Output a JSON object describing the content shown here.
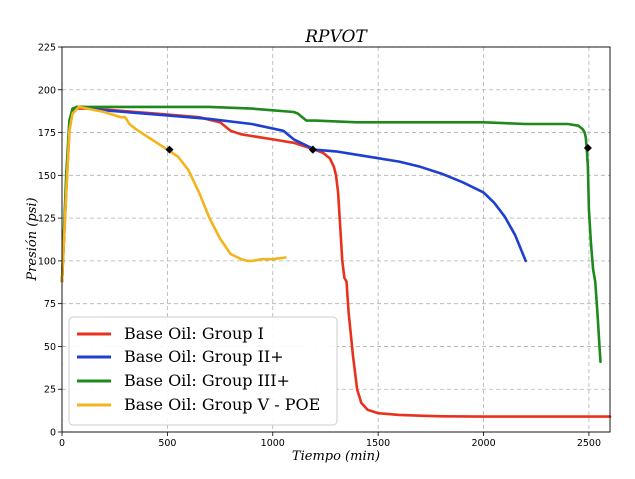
{
  "chart_data": {
    "type": "line",
    "title": "RPVOT",
    "xlabel": "Tiempo (min)",
    "ylabel": "Presión (psi)",
    "xlim": [
      0,
      2600
    ],
    "ylim": [
      0,
      225
    ],
    "xticks": [
      "0",
      "500",
      "1000",
      "1500",
      "2000",
      "2500"
    ],
    "yticks": [
      "0",
      "25",
      "50",
      "75",
      "100",
      "125",
      "150",
      "175",
      "200",
      "225"
    ],
    "xtick_values": [
      0,
      500,
      1000,
      1500,
      2000,
      2500
    ],
    "ytick_values": [
      0,
      25,
      50,
      75,
      100,
      125,
      150,
      175,
      200,
      225
    ],
    "grid": true,
    "legend_position": "lower-left",
    "series": [
      {
        "name": "Base Oil: Group I",
        "color": "#e8321e",
        "x": [
          0,
          20,
          35,
          50,
          70,
          100,
          150,
          250,
          350,
          450,
          550,
          650,
          750,
          800,
          850,
          900,
          950,
          1000,
          1050,
          1100,
          1150,
          1200,
          1240,
          1270,
          1290,
          1300,
          1310,
          1320,
          1330,
          1340,
          1350,
          1360,
          1380,
          1400,
          1420,
          1450,
          1500,
          1600,
          1700,
          1800,
          2000,
          2200,
          2400,
          2600
        ],
        "y": [
          88,
          140,
          176,
          187,
          189,
          189,
          189,
          188,
          187,
          186,
          185,
          184,
          181,
          176,
          174,
          173,
          172,
          171,
          170,
          169,
          167,
          165,
          163,
          160,
          155,
          150,
          140,
          120,
          100,
          90,
          88,
          70,
          45,
          25,
          17,
          13,
          11,
          10,
          9.5,
          9.2,
          9,
          9,
          9,
          9
        ],
        "marker": {
          "x": 1190,
          "y": 165
        }
      },
      {
        "name": "Base Oil: Group II+",
        "color": "#1f3fd0",
        "x": [
          0,
          20,
          35,
          50,
          70,
          100,
          200,
          300,
          500,
          700,
          900,
          1050,
          1100,
          1150,
          1200,
          1300,
          1400,
          1500,
          1600,
          1700,
          1800,
          1900,
          2000,
          2050,
          2100,
          2150,
          2200
        ],
        "y": [
          88,
          145,
          180,
          188,
          190,
          190,
          188,
          187,
          185,
          183,
          180,
          176,
          171,
          168,
          165,
          164,
          162,
          160,
          158,
          155,
          151,
          146,
          140,
          134,
          126,
          115,
          100
        ],
        "marker": {
          "x": 1190,
          "y": 165
        }
      },
      {
        "name": "Base Oil: Group III+",
        "color": "#1e8a1e",
        "x": [
          0,
          20,
          35,
          50,
          70,
          100,
          200,
          400,
          550,
          700,
          900,
          1000,
          1100,
          1120,
          1140,
          1160,
          1200,
          1400,
          1600,
          1800,
          2000,
          2200,
          2400,
          2450,
          2470,
          2480,
          2485,
          2490,
          2495,
          2500,
          2510,
          2520,
          2530,
          2540,
          2550,
          2555
        ],
        "y": [
          88,
          150,
          182,
          189,
          190,
          190,
          190,
          190,
          190,
          190,
          189,
          188,
          187,
          186,
          184,
          182,
          182,
          181,
          181,
          181,
          181,
          180,
          180,
          179,
          177,
          175,
          172,
          165,
          155,
          130,
          110,
          95,
          88,
          70,
          50,
          41
        ],
        "marker": {
          "x": 2495,
          "y": 166
        }
      },
      {
        "name": "Base Oil: Group V - POE",
        "color": "#f4b41c",
        "x": [
          0,
          20,
          35,
          50,
          80,
          120,
          200,
          280,
          300,
          320,
          350,
          400,
          450,
          500,
          550,
          600,
          650,
          700,
          750,
          800,
          850,
          880,
          900,
          950,
          1000,
          1060
        ],
        "y": [
          88,
          140,
          176,
          186,
          190,
          189,
          187,
          184,
          184,
          180,
          177,
          173,
          169,
          165,
          161,
          153,
          140,
          125,
          113,
          104,
          101,
          100,
          100,
          101,
          101,
          102
        ],
        "marker": {
          "x": 510,
          "y": 165
        }
      }
    ]
  }
}
